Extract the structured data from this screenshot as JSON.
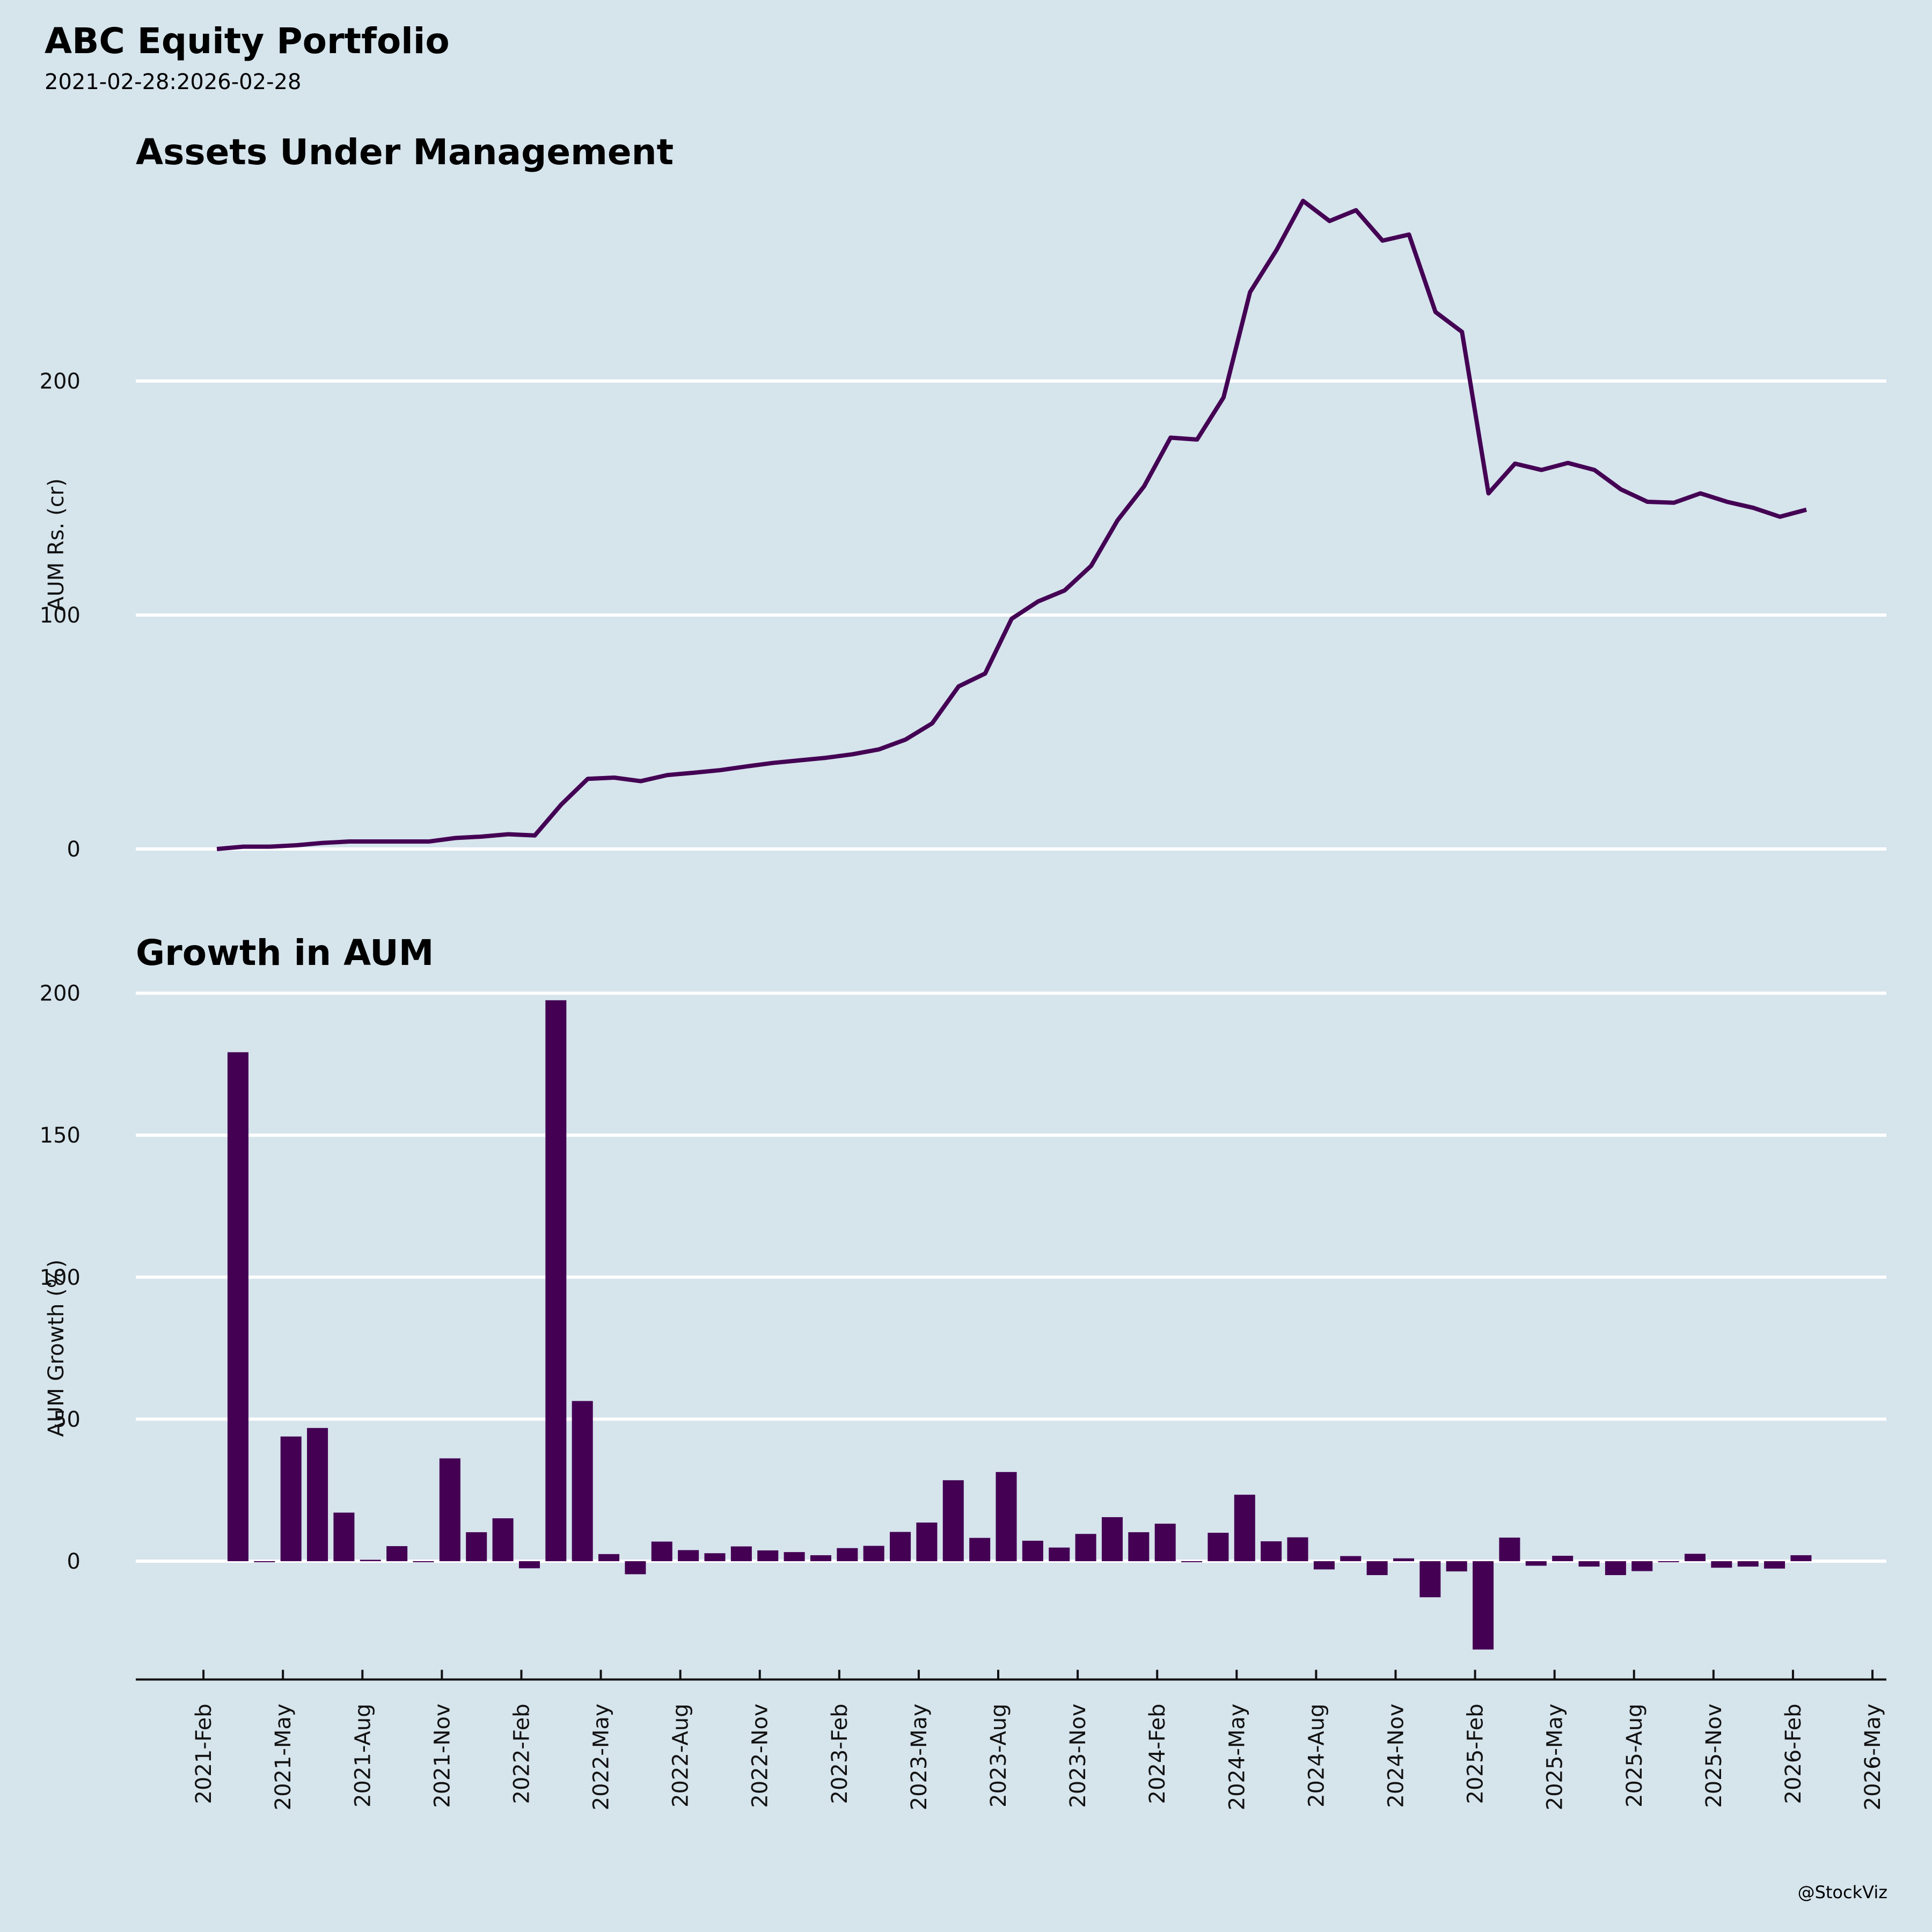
{
  "header": {
    "title": "ABC Equity Portfolio",
    "subtitle": "2021-02-28:2026-02-28",
    "footer": "@StockViz"
  },
  "colors": {
    "background": "#d6e4ec",
    "series": "#440154",
    "grid": "#ffffff"
  },
  "chart_data": [
    {
      "type": "line",
      "title": "Assets Under Management",
      "xlabel": "",
      "ylabel": "AUM Rs. (cr)",
      "ylim": [
        -5,
        285
      ],
      "yticks": [
        0,
        100,
        200
      ],
      "grid": true,
      "x_start": "2021-02-28",
      "x_freq": "month-end",
      "values": [
        0,
        1,
        1,
        1.6,
        2.6,
        3.2,
        3.2,
        3.2,
        3.2,
        4.7,
        5.3,
        6.3,
        5.8,
        19,
        30,
        30.5,
        29,
        31.6,
        32.6,
        33.7,
        35.3,
        36.8,
        37.9,
        39,
        40.5,
        42.6,
        46.8,
        53.7,
        69.5,
        75,
        98.4,
        105.8,
        110.5,
        121,
        140.5,
        155,
        175.8,
        175,
        193,
        238,
        256,
        277,
        268.4,
        273,
        260,
        262.6,
        229.5,
        221,
        152,
        164.7,
        162,
        165,
        162,
        153.7,
        148.4,
        148,
        152,
        148.4,
        145.8,
        142,
        145
      ]
    },
    {
      "type": "bar",
      "title": "Growth in AUM",
      "xlabel": "",
      "ylabel": "AUM Growth (%)",
      "ylim": [
        -42,
        202
      ],
      "yticks": [
        0,
        50,
        100,
        150,
        200
      ],
      "grid": true,
      "x_start": "2021-03-31",
      "x_freq": "month-end",
      "values": [
        179.2,
        0,
        43.9,
        46.9,
        17.1,
        0.5,
        5.3,
        -0.3,
        36.2,
        10.2,
        15.1,
        -2.5,
        197.5,
        56.4,
        2.5,
        -4.6,
        6.9,
        3.9,
        2.8,
        5.2,
        3.8,
        3.2,
        2.1,
        4.6,
        5.4,
        10.3,
        13.6,
        28.5,
        8.2,
        31.4,
        7.2,
        4.8,
        9.6,
        15.5,
        10.2,
        13.2,
        -0.1,
        10.0,
        23.4,
        7.0,
        8.4,
        -2.9,
        1.8,
        -4.9,
        1.0,
        -12.7,
        -3.6,
        -31.1,
        8.3,
        -1.6,
        1.9,
        -1.9,
        -4.9,
        -3.5,
        -0.2,
        2.6,
        -2.3,
        -1.9,
        -2.6,
        2.1
      ]
    }
  ],
  "x_axis": {
    "ticks": [
      "2021-Feb",
      "2021-May",
      "2021-Aug",
      "2021-Nov",
      "2022-Feb",
      "2022-May",
      "2022-Aug",
      "2022-Nov",
      "2023-Feb",
      "2023-May",
      "2023-Aug",
      "2023-Nov",
      "2024-Feb",
      "2024-May",
      "2024-Aug",
      "2024-Nov",
      "2025-Feb",
      "2025-May",
      "2025-Aug",
      "2025-Nov",
      "2026-Feb",
      "2026-May"
    ]
  }
}
